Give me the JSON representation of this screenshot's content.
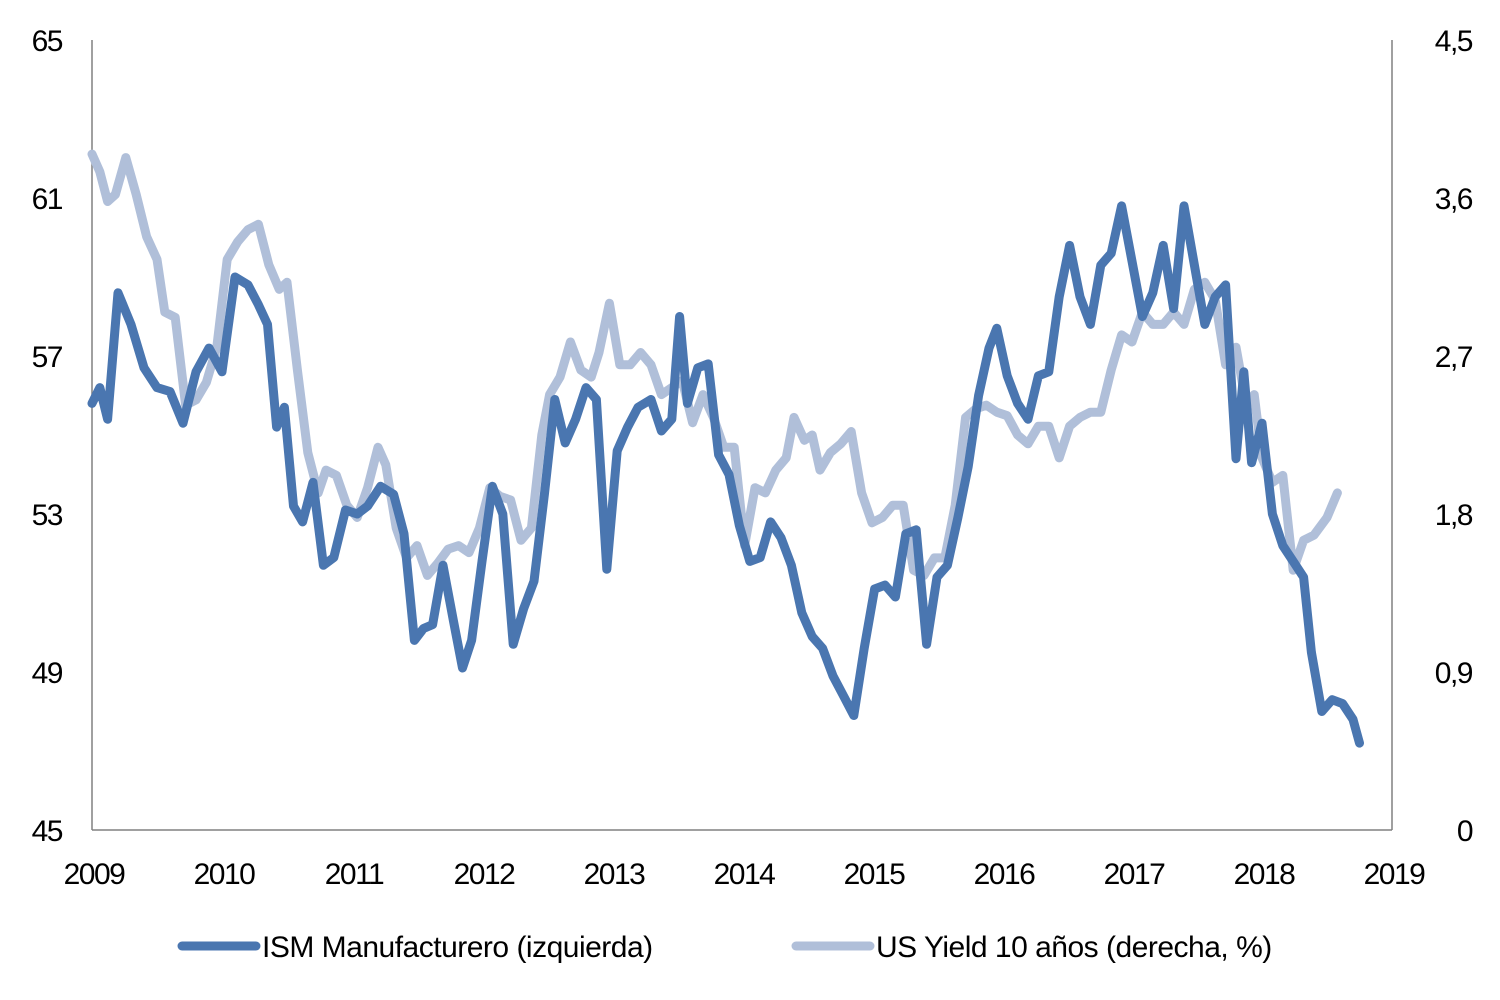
{
  "chart_data": {
    "type": "line",
    "title": "",
    "xlabel": "",
    "x_ticks": [
      "2009",
      "2010",
      "2011",
      "2012",
      "2013",
      "2014",
      "2015",
      "2016",
      "2017",
      "2018",
      "2019"
    ],
    "x_range": [
      2009.0,
      2019.0
    ],
    "y_left": {
      "ticks": [
        "65",
        "61",
        "57",
        "53",
        "49",
        "45"
      ],
      "range": [
        45,
        65
      ]
    },
    "y_right": {
      "ticks": [
        "4,5",
        "3,6",
        "2,7",
        "1,8",
        "0,9",
        "0"
      ],
      "range": [
        0,
        4.5
      ]
    },
    "legend_position": "bottom",
    "series": [
      {
        "name": "ISM Manufacturero (izquierda)",
        "axis": "left",
        "color": "#4a76b0",
        "points": [
          [
            2009.0,
            55.8
          ],
          [
            2009.06,
            56.2
          ],
          [
            2009.12,
            55.4
          ],
          [
            2009.2,
            58.6
          ],
          [
            2009.3,
            57.8
          ],
          [
            2009.4,
            56.7
          ],
          [
            2009.5,
            56.2
          ],
          [
            2009.6,
            56.1
          ],
          [
            2009.7,
            55.3
          ],
          [
            2009.8,
            56.6
          ],
          [
            2009.9,
            57.2
          ],
          [
            2010.0,
            56.6
          ],
          [
            2010.1,
            59.0
          ],
          [
            2010.2,
            58.8
          ],
          [
            2010.28,
            58.3
          ],
          [
            2010.35,
            57.8
          ],
          [
            2010.42,
            55.2
          ],
          [
            2010.48,
            55.7
          ],
          [
            2010.55,
            53.2
          ],
          [
            2010.62,
            52.8
          ],
          [
            2010.7,
            53.8
          ],
          [
            2010.78,
            51.7
          ],
          [
            2010.86,
            51.9
          ],
          [
            2010.95,
            53.1
          ],
          [
            2011.04,
            53.0
          ],
          [
            2011.12,
            53.2
          ],
          [
            2011.22,
            53.7
          ],
          [
            2011.32,
            53.5
          ],
          [
            2011.4,
            52.5
          ],
          [
            2011.48,
            49.8
          ],
          [
            2011.55,
            50.1
          ],
          [
            2011.62,
            50.2
          ],
          [
            2011.7,
            51.7
          ],
          [
            2011.78,
            50.3
          ],
          [
            2011.85,
            49.1
          ],
          [
            2011.92,
            49.8
          ],
          [
            2012.0,
            51.8
          ],
          [
            2012.08,
            53.7
          ],
          [
            2012.16,
            53.0
          ],
          [
            2012.24,
            49.7
          ],
          [
            2012.32,
            50.6
          ],
          [
            2012.4,
            51.3
          ],
          [
            2012.48,
            53.5
          ],
          [
            2012.56,
            55.9
          ],
          [
            2012.64,
            54.8
          ],
          [
            2012.72,
            55.4
          ],
          [
            2012.8,
            56.2
          ],
          [
            2012.88,
            55.9
          ],
          [
            2012.96,
            51.6
          ],
          [
            2013.04,
            54.6
          ],
          [
            2013.12,
            55.2
          ],
          [
            2013.2,
            55.7
          ],
          [
            2013.3,
            55.9
          ],
          [
            2013.38,
            55.1
          ],
          [
            2013.46,
            55.4
          ],
          [
            2013.52,
            58.0
          ],
          [
            2013.58,
            55.8
          ],
          [
            2013.66,
            56.7
          ],
          [
            2013.74,
            56.8
          ],
          [
            2013.82,
            54.5
          ],
          [
            2013.9,
            54.0
          ],
          [
            2013.98,
            52.7
          ],
          [
            2014.06,
            51.8
          ],
          [
            2014.14,
            51.9
          ],
          [
            2014.22,
            52.8
          ],
          [
            2014.3,
            52.4
          ],
          [
            2014.38,
            51.7
          ],
          [
            2014.46,
            50.5
          ],
          [
            2014.54,
            49.9
          ],
          [
            2014.62,
            49.6
          ],
          [
            2014.7,
            48.9
          ],
          [
            2014.78,
            48.4
          ],
          [
            2014.86,
            47.9
          ],
          [
            2014.94,
            49.6
          ],
          [
            2015.02,
            51.1
          ],
          [
            2015.1,
            51.2
          ],
          [
            2015.18,
            50.9
          ],
          [
            2015.26,
            52.5
          ],
          [
            2015.34,
            52.6
          ],
          [
            2015.42,
            49.7
          ],
          [
            2015.5,
            51.4
          ],
          [
            2015.58,
            51.7
          ],
          [
            2015.66,
            52.9
          ],
          [
            2015.74,
            54.2
          ],
          [
            2015.82,
            56.0
          ],
          [
            2015.9,
            57.2
          ],
          [
            2015.96,
            57.7
          ],
          [
            2016.04,
            56.5
          ],
          [
            2016.12,
            55.8
          ],
          [
            2016.2,
            55.4
          ],
          [
            2016.28,
            56.5
          ],
          [
            2016.36,
            56.6
          ],
          [
            2016.44,
            58.5
          ],
          [
            2016.52,
            59.8
          ],
          [
            2016.6,
            58.5
          ],
          [
            2016.68,
            57.8
          ],
          [
            2016.76,
            59.3
          ],
          [
            2016.84,
            59.6
          ],
          [
            2016.92,
            60.8
          ],
          [
            2017.0,
            59.4
          ],
          [
            2017.08,
            58.0
          ],
          [
            2017.16,
            58.6
          ],
          [
            2017.24,
            59.8
          ],
          [
            2017.32,
            58.2
          ],
          [
            2017.4,
            60.8
          ],
          [
            2017.48,
            59.3
          ],
          [
            2017.56,
            57.8
          ],
          [
            2017.64,
            58.5
          ],
          [
            2017.72,
            58.8
          ],
          [
            2017.8,
            54.4
          ],
          [
            2017.86,
            56.6
          ],
          [
            2017.92,
            54.3
          ],
          [
            2018.0,
            55.3
          ],
          [
            2018.08,
            53.0
          ],
          [
            2018.16,
            52.2
          ],
          [
            2018.24,
            51.8
          ],
          [
            2018.32,
            51.4
          ],
          [
            2018.38,
            49.5
          ],
          [
            2018.46,
            48.0
          ],
          [
            2018.54,
            48.3
          ],
          [
            2018.62,
            48.2
          ],
          [
            2018.7,
            47.8
          ],
          [
            2018.75,
            47.2
          ]
        ]
      },
      {
        "name": "US Yield 10 años (derecha, %)",
        "axis": "right",
        "color": "#b0bfd9",
        "points": [
          [
            2009.0,
            3.85
          ],
          [
            2009.06,
            3.75
          ],
          [
            2009.12,
            3.58
          ],
          [
            2009.18,
            3.62
          ],
          [
            2009.26,
            3.83
          ],
          [
            2009.34,
            3.62
          ],
          [
            2009.42,
            3.38
          ],
          [
            2009.5,
            3.25
          ],
          [
            2009.56,
            2.95
          ],
          [
            2009.64,
            2.92
          ],
          [
            2009.72,
            2.42
          ],
          [
            2009.8,
            2.45
          ],
          [
            2009.88,
            2.55
          ],
          [
            2009.96,
            2.75
          ],
          [
            2010.04,
            3.25
          ],
          [
            2010.12,
            3.35
          ],
          [
            2010.2,
            3.42
          ],
          [
            2010.28,
            3.45
          ],
          [
            2010.36,
            3.22
          ],
          [
            2010.44,
            3.08
          ],
          [
            2010.5,
            3.12
          ],
          [
            2010.58,
            2.62
          ],
          [
            2010.66,
            2.15
          ],
          [
            2010.74,
            1.92
          ],
          [
            2010.8,
            2.05
          ],
          [
            2010.88,
            2.02
          ],
          [
            2010.96,
            1.85
          ],
          [
            2011.04,
            1.78
          ],
          [
            2011.12,
            1.95
          ],
          [
            2011.2,
            2.18
          ],
          [
            2011.26,
            2.08
          ],
          [
            2011.34,
            1.72
          ],
          [
            2011.42,
            1.55
          ],
          [
            2011.5,
            1.62
          ],
          [
            2011.58,
            1.45
          ],
          [
            2011.66,
            1.52
          ],
          [
            2011.74,
            1.6
          ],
          [
            2011.82,
            1.62
          ],
          [
            2011.9,
            1.58
          ],
          [
            2011.98,
            1.72
          ],
          [
            2012.06,
            1.95
          ],
          [
            2012.14,
            1.9
          ],
          [
            2012.22,
            1.88
          ],
          [
            2012.3,
            1.65
          ],
          [
            2012.38,
            1.72
          ],
          [
            2012.46,
            2.25
          ],
          [
            2012.52,
            2.48
          ],
          [
            2012.6,
            2.58
          ],
          [
            2012.68,
            2.78
          ],
          [
            2012.76,
            2.62
          ],
          [
            2012.84,
            2.58
          ],
          [
            2012.9,
            2.72
          ],
          [
            2012.98,
            3.0
          ],
          [
            2013.06,
            2.65
          ],
          [
            2013.14,
            2.65
          ],
          [
            2013.22,
            2.72
          ],
          [
            2013.3,
            2.65
          ],
          [
            2013.38,
            2.48
          ],
          [
            2013.46,
            2.52
          ],
          [
            2013.54,
            2.56
          ],
          [
            2013.62,
            2.32
          ],
          [
            2013.7,
            2.48
          ],
          [
            2013.78,
            2.35
          ],
          [
            2013.86,
            2.18
          ],
          [
            2013.94,
            2.18
          ],
          [
            2014.02,
            1.62
          ],
          [
            2014.1,
            1.95
          ],
          [
            2014.18,
            1.92
          ],
          [
            2014.26,
            2.05
          ],
          [
            2014.34,
            2.12
          ],
          [
            2014.4,
            2.35
          ],
          [
            2014.48,
            2.22
          ],
          [
            2014.54,
            2.25
          ],
          [
            2014.6,
            2.05
          ],
          [
            2014.68,
            2.15
          ],
          [
            2014.76,
            2.2
          ],
          [
            2014.84,
            2.27
          ],
          [
            2014.92,
            1.92
          ],
          [
            2015.0,
            1.75
          ],
          [
            2015.08,
            1.78
          ],
          [
            2015.16,
            1.85
          ],
          [
            2015.24,
            1.85
          ],
          [
            2015.32,
            1.48
          ],
          [
            2015.4,
            1.45
          ],
          [
            2015.48,
            1.55
          ],
          [
            2015.56,
            1.55
          ],
          [
            2015.64,
            1.85
          ],
          [
            2015.72,
            2.35
          ],
          [
            2015.8,
            2.4
          ],
          [
            2015.88,
            2.42
          ],
          [
            2015.96,
            2.38
          ],
          [
            2016.04,
            2.36
          ],
          [
            2016.12,
            2.25
          ],
          [
            2016.2,
            2.2
          ],
          [
            2016.28,
            2.3
          ],
          [
            2016.36,
            2.3
          ],
          [
            2016.44,
            2.12
          ],
          [
            2016.52,
            2.3
          ],
          [
            2016.6,
            2.35
          ],
          [
            2016.68,
            2.38
          ],
          [
            2016.76,
            2.38
          ],
          [
            2016.84,
            2.62
          ],
          [
            2016.92,
            2.82
          ],
          [
            2017.0,
            2.78
          ],
          [
            2017.08,
            2.95
          ],
          [
            2017.16,
            2.88
          ],
          [
            2017.24,
            2.88
          ],
          [
            2017.32,
            2.95
          ],
          [
            2017.4,
            2.88
          ],
          [
            2017.48,
            3.08
          ],
          [
            2017.56,
            3.12
          ],
          [
            2017.64,
            3.02
          ],
          [
            2017.72,
            2.65
          ],
          [
            2017.8,
            2.75
          ],
          [
            2017.88,
            2.42
          ],
          [
            2017.94,
            2.48
          ],
          [
            2018.0,
            2.12
          ],
          [
            2018.08,
            1.98
          ],
          [
            2018.16,
            2.02
          ],
          [
            2018.24,
            1.48
          ],
          [
            2018.32,
            1.65
          ],
          [
            2018.4,
            1.68
          ],
          [
            2018.5,
            1.78
          ],
          [
            2018.58,
            1.92
          ]
        ]
      }
    ]
  }
}
